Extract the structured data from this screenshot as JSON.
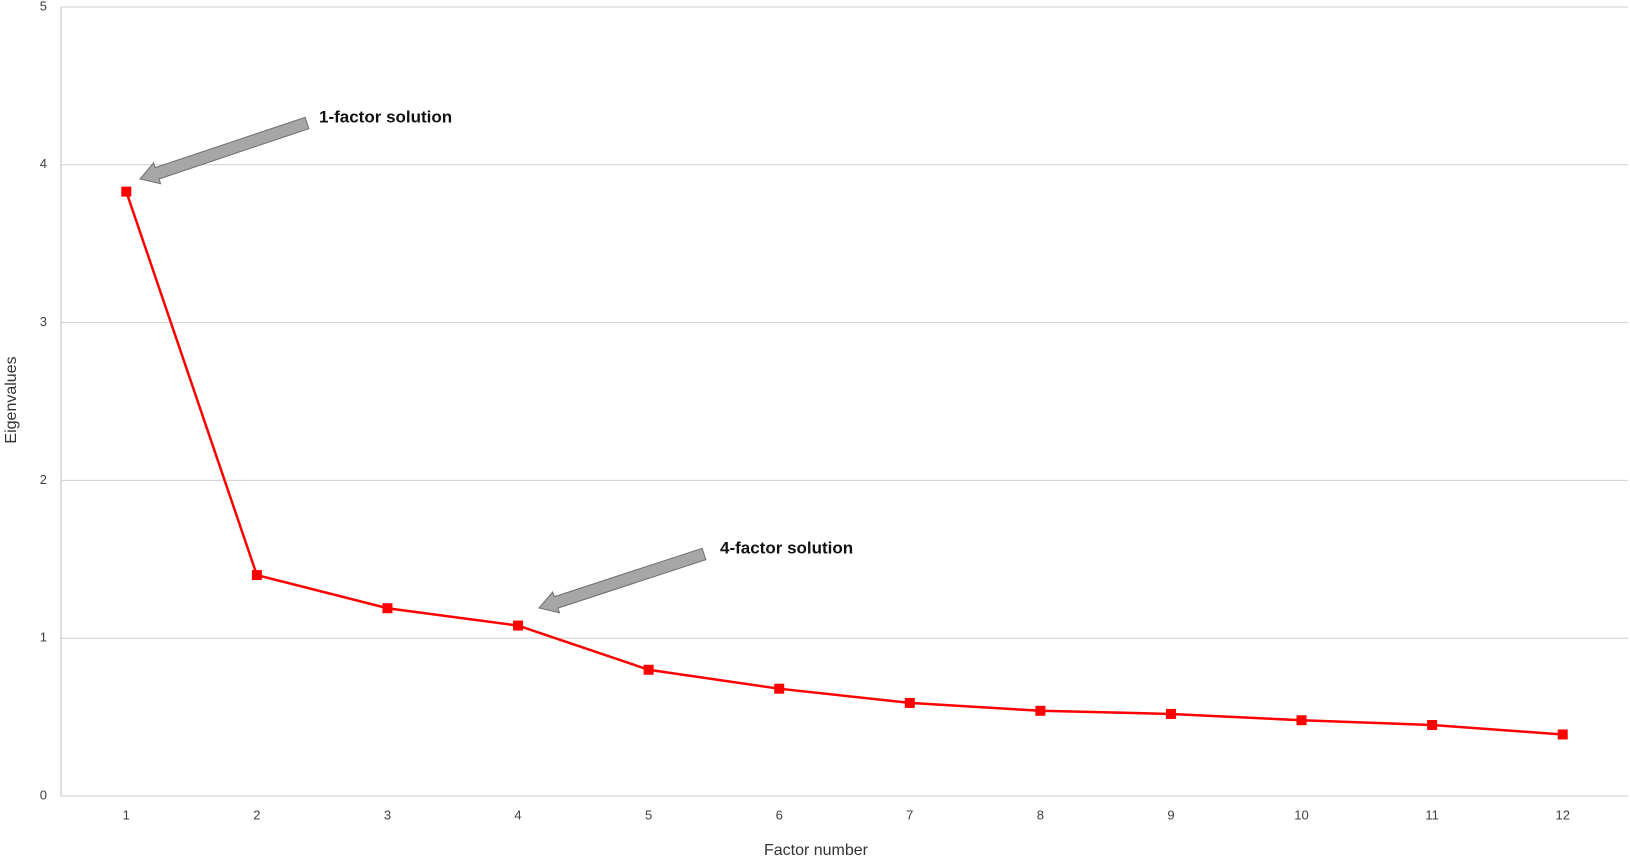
{
  "chart_data": {
    "type": "line",
    "xlabel": "Factor number",
    "ylabel": "Eigenvalues",
    "categories": [
      "1",
      "2",
      "3",
      "4",
      "5",
      "6",
      "7",
      "8",
      "9",
      "10",
      "11",
      "12"
    ],
    "values": [
      3.83,
      1.4,
      1.19,
      1.08,
      0.8,
      0.68,
      0.59,
      0.54,
      0.52,
      0.48,
      0.45,
      0.39
    ],
    "color": "#ff0000",
    "ylim": [
      0,
      5
    ],
    "yticks": [
      0,
      1,
      2,
      3,
      4,
      5
    ],
    "grid": true,
    "annotations": [
      {
        "text": "1-factor solution"
      },
      {
        "text": "4-factor solution"
      }
    ]
  }
}
